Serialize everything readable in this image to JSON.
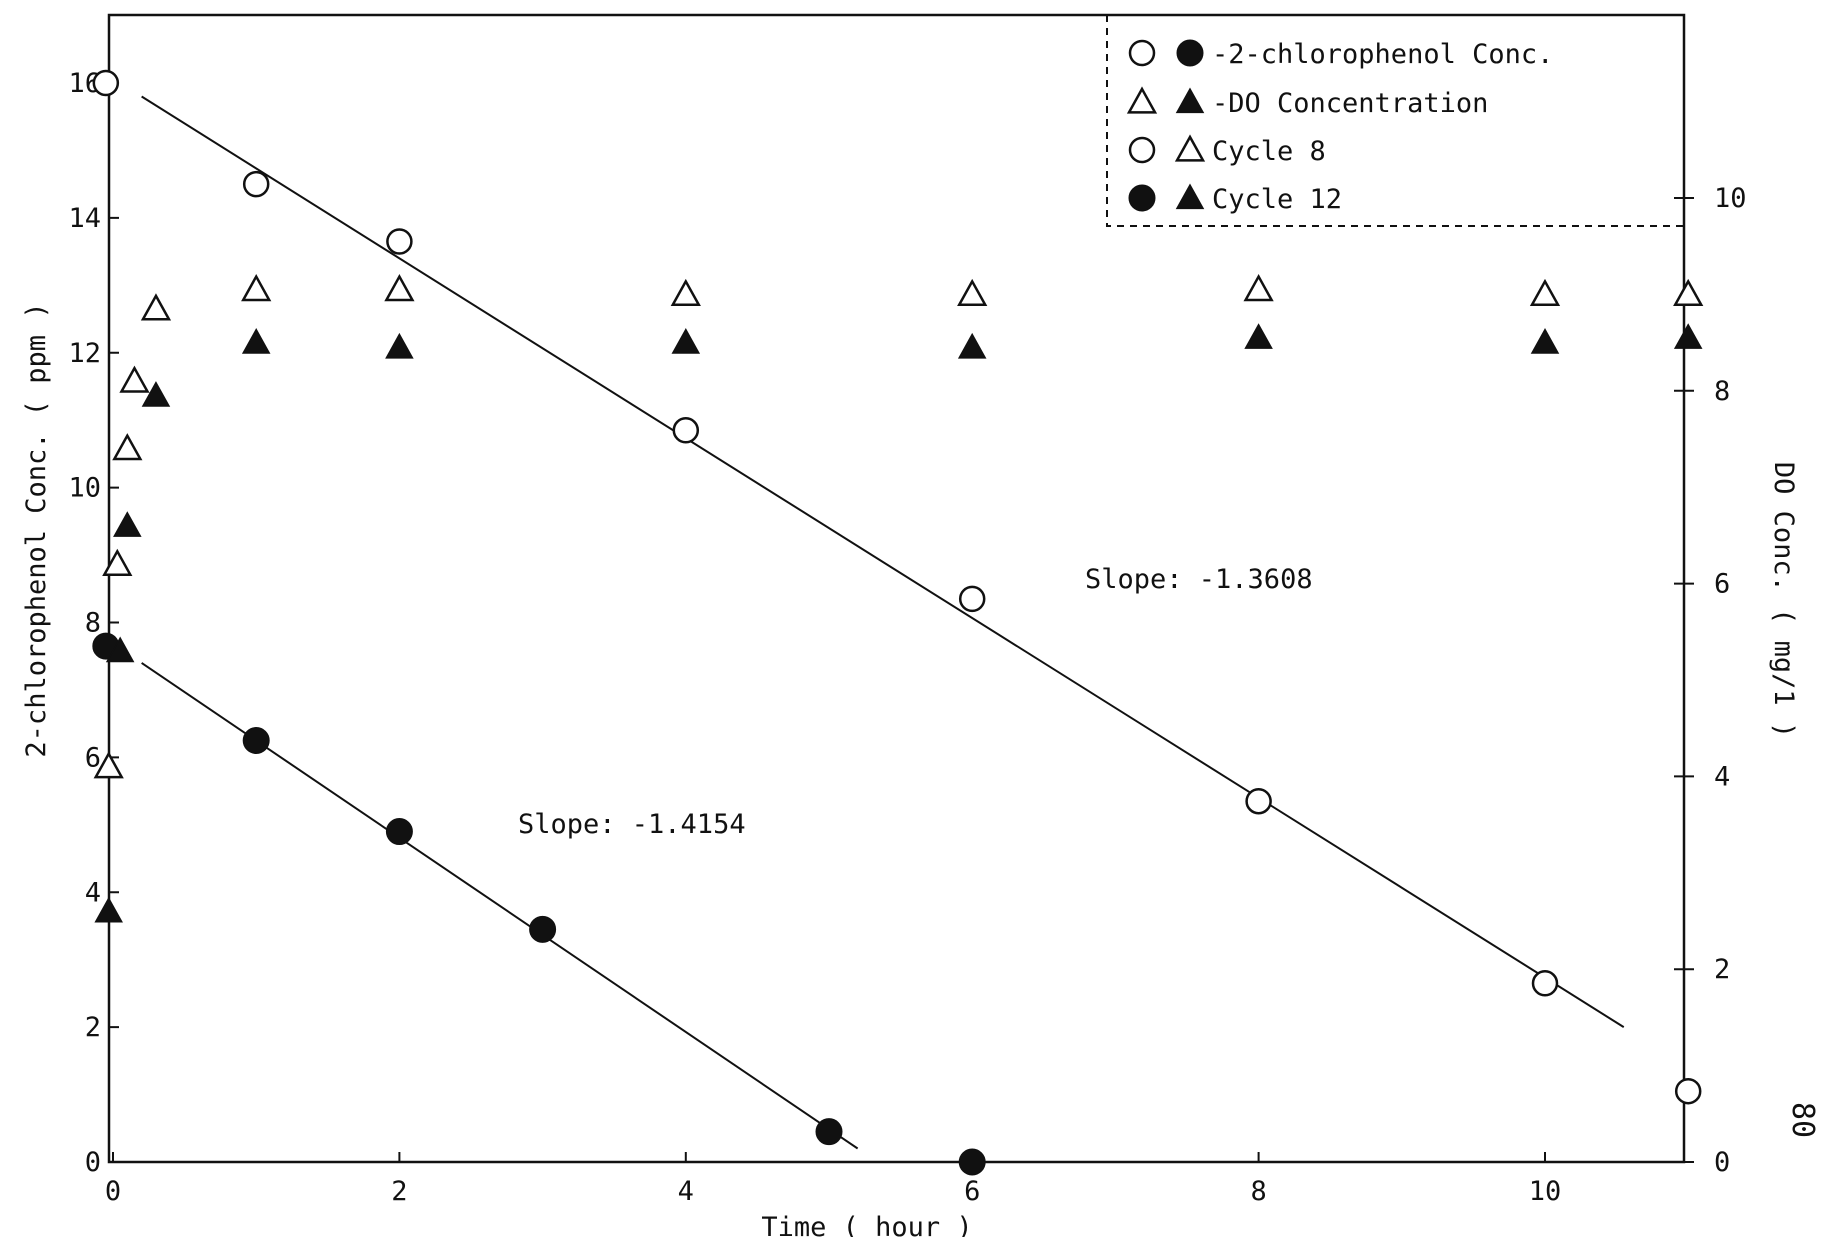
{
  "page_number": "80",
  "chart_data": {
    "type": "scatter",
    "xlabel": "Time ( hour )",
    "ylabel_left": "2-chlorophenol Conc. ( ppm )",
    "ylabel_right": "DO Conc. ( mg/1 )",
    "xlim": [
      -0.05,
      11
    ],
    "ylim_left": [
      0,
      17
    ],
    "ylim_right": [
      0,
      12
    ],
    "x_ticks": [
      0,
      2,
      4,
      6,
      8,
      10
    ],
    "x_tick_labels": [
      "0",
      "2",
      "4",
      "6",
      "8",
      "10"
    ],
    "y_left_ticks": [
      0,
      2,
      4,
      6,
      8,
      10,
      12,
      14,
      16
    ],
    "y_left_tick_labels": [
      "0",
      "2",
      "4",
      "6",
      "8",
      "10",
      "12",
      "14",
      "16"
    ],
    "y_right_ticks": [
      0,
      2,
      4,
      6,
      8,
      10
    ],
    "y_right_tick_labels": [
      "0",
      "2",
      "4",
      "6",
      "8",
      "10"
    ],
    "legend": {
      "placement": "top-right",
      "entries": [
        {
          "markers": [
            "open-circle",
            "filled-circle"
          ],
          "label": "-2-chlorophenol Conc."
        },
        {
          "markers": [
            "open-triangle",
            "filled-triangle"
          ],
          "label": "-DO Concentration"
        },
        {
          "markers": [
            "open-circle",
            "open-triangle"
          ],
          "label": "Cycle 8"
        },
        {
          "markers": [
            "filled-circle",
            "filled-triangle"
          ],
          "label": "Cycle 12"
        }
      ]
    },
    "series": [
      {
        "marker": "open-circle",
        "axis": "left",
        "x": [
          -0.05,
          1,
          2,
          4,
          6,
          8,
          10,
          11
        ],
        "y": [
          16,
          14.5,
          13.65,
          10.85,
          8.35,
          5.35,
          2.65,
          1.05
        ]
      },
      {
        "marker": "filled-circle",
        "axis": "left",
        "x": [
          -0.05,
          1,
          2,
          3,
          5,
          6
        ],
        "y": [
          7.65,
          6.25,
          4.9,
          3.45,
          0.45,
          0
        ]
      },
      {
        "marker": "open-triangle",
        "axis": "right",
        "x": [
          -0.03,
          0.03,
          0.1,
          0.15,
          0.3,
          1,
          2,
          4,
          6,
          8,
          10,
          11
        ],
        "y": [
          4.1,
          6.2,
          7.4,
          8.1,
          8.85,
          9.05,
          9.05,
          9.0,
          9.0,
          9.05,
          9.0,
          9.0
        ],
        "note_first_point_label": ""
      },
      {
        "marker": "filled-triangle",
        "axis": "right",
        "x": [
          -0.03,
          0.05,
          0.1,
          0.3,
          1,
          2,
          4,
          6,
          8,
          10,
          11
        ],
        "y": [
          2.6,
          5.3,
          6.6,
          7.95,
          8.5,
          8.45,
          8.5,
          8.45,
          8.55,
          8.5,
          8.55
        ]
      }
    ],
    "fit_lines": [
      {
        "axis": "left",
        "x": [
          0.2,
          10.55
        ],
        "y": [
          15.8,
          2.0
        ],
        "label": "Slope: -1.3608"
      },
      {
        "axis": "left",
        "x": [
          0.2,
          5.2
        ],
        "y": [
          7.4,
          0.2
        ],
        "label": "Slope: -1.4154"
      }
    ]
  }
}
